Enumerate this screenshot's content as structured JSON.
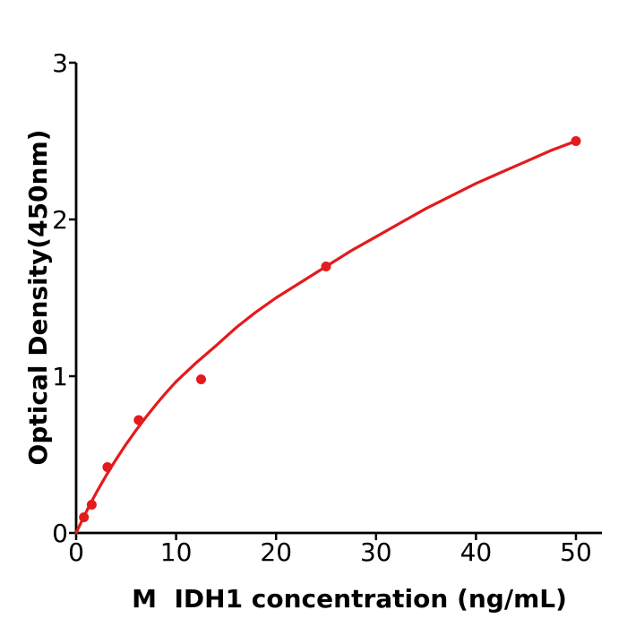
{
  "figure": {
    "background": "#ffffff",
    "axis_color": "#000000"
  },
  "chart_data": {
    "type": "scatter",
    "title": "",
    "xlabel": "M  IDH1 concentration (ng/mL)",
    "ylabel": "Optical Density(450nm)",
    "xlim": [
      0,
      52.6
    ],
    "ylim": [
      0,
      3
    ],
    "xticks": [
      0,
      10,
      20,
      30,
      40,
      50
    ],
    "yticks": [
      0,
      1,
      2,
      3
    ],
    "xtick_labels": [
      "0",
      "10",
      "20",
      "30",
      "40",
      "50"
    ],
    "ytick_labels": [
      "0",
      "1",
      "2",
      "3"
    ],
    "grid": false,
    "legend_position": "none",
    "accent_color": "#e41a1c",
    "series": [
      {
        "name": "standard-points",
        "type": "scatter",
        "color": "#e41a1c",
        "points": [
          {
            "x": 0.78,
            "y": 0.1
          },
          {
            "x": 1.56,
            "y": 0.18
          },
          {
            "x": 3.125,
            "y": 0.42
          },
          {
            "x": 6.25,
            "y": 0.72
          },
          {
            "x": 12.5,
            "y": 0.98
          },
          {
            "x": 25,
            "y": 1.7
          },
          {
            "x": 50,
            "y": 2.5
          }
        ]
      },
      {
        "name": "fit-curve",
        "type": "line",
        "color": "#e41a1c",
        "points": [
          [
            0,
            0
          ],
          [
            0.5,
            0.068
          ],
          [
            1,
            0.133
          ],
          [
            1.5,
            0.195
          ],
          [
            2,
            0.254
          ],
          [
            2.5,
            0.311
          ],
          [
            3,
            0.366
          ],
          [
            3.5,
            0.419
          ],
          [
            4,
            0.469
          ],
          [
            5,
            0.566
          ],
          [
            6,
            0.656
          ],
          [
            7,
            0.74
          ],
          [
            8,
            0.82
          ],
          [
            9,
            0.895
          ],
          [
            10,
            0.965
          ],
          [
            12,
            1.085
          ],
          [
            14,
            1.195
          ],
          [
            16,
            1.31
          ],
          [
            18,
            1.41
          ],
          [
            20,
            1.5
          ],
          [
            22.5,
            1.6
          ],
          [
            25,
            1.7
          ],
          [
            27.5,
            1.8
          ],
          [
            30,
            1.89
          ],
          [
            32.5,
            1.98
          ],
          [
            35,
            2.07
          ],
          [
            37.5,
            2.15
          ],
          [
            40,
            2.23
          ],
          [
            42.5,
            2.3
          ],
          [
            45,
            2.37
          ],
          [
            47.5,
            2.44
          ],
          [
            50,
            2.5
          ]
        ]
      }
    ]
  }
}
